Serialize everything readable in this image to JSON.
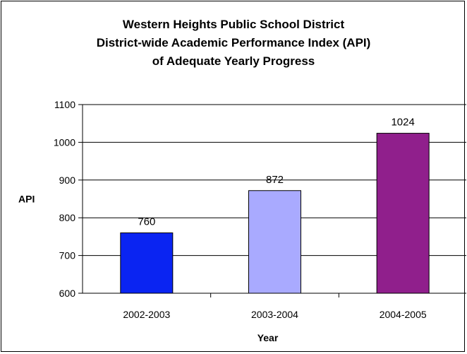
{
  "chart_data": {
    "type": "bar",
    "title": [
      "Western Heights Public School District",
      "District-wide Academic Performance Index (API)",
      "of Adequate Yearly Progress"
    ],
    "xlabel": "Year",
    "ylabel": "API",
    "categories": [
      "2002-2003",
      "2003-2004",
      "2004-2005"
    ],
    "values": [
      760,
      872,
      1024
    ],
    "colors": [
      "#0a24f2",
      "#a9aaff",
      "#901f8c"
    ],
    "ylim": [
      600,
      1100
    ],
    "yticks": [
      600,
      700,
      800,
      900,
      1000,
      1100
    ],
    "grid": true,
    "legend": "none"
  }
}
